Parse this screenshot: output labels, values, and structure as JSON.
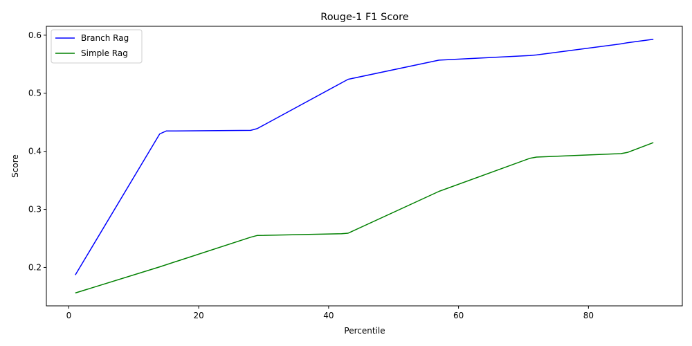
{
  "chart_data": {
    "type": "line",
    "title": "Rouge-1 F1 Score",
    "xlabel": "Percentile",
    "ylabel": "Score",
    "xlim": [
      -3.45,
      94.45
    ],
    "ylim": [
      0.1338,
      0.6153
    ],
    "xticks": [
      0,
      20,
      40,
      60,
      80
    ],
    "yticks": [
      0.2,
      0.3,
      0.4,
      0.5,
      0.6
    ],
    "xtick_labels": [
      "0",
      "20",
      "40",
      "60",
      "80"
    ],
    "ytick_labels": [
      "0.2",
      "0.3",
      "0.4",
      "0.5",
      "0.6"
    ],
    "grid": false,
    "legend": "top-left",
    "series": [
      {
        "name": "Branch Rag",
        "color": "#0000ff",
        "x": [
          1,
          14,
          15,
          28,
          29,
          43,
          57,
          71,
          72,
          85,
          86,
          90
        ],
        "y": [
          0.187,
          0.43,
          0.435,
          0.436,
          0.439,
          0.524,
          0.557,
          0.565,
          0.566,
          0.585,
          0.587,
          0.593
        ]
      },
      {
        "name": "Simple Rag",
        "color": "#008000",
        "x": [
          1,
          14,
          28,
          29,
          42,
          43,
          57,
          71,
          72,
          85,
          86,
          90
        ],
        "y": [
          0.156,
          0.201,
          0.252,
          0.255,
          0.258,
          0.259,
          0.331,
          0.388,
          0.39,
          0.396,
          0.398,
          0.415
        ]
      }
    ]
  }
}
